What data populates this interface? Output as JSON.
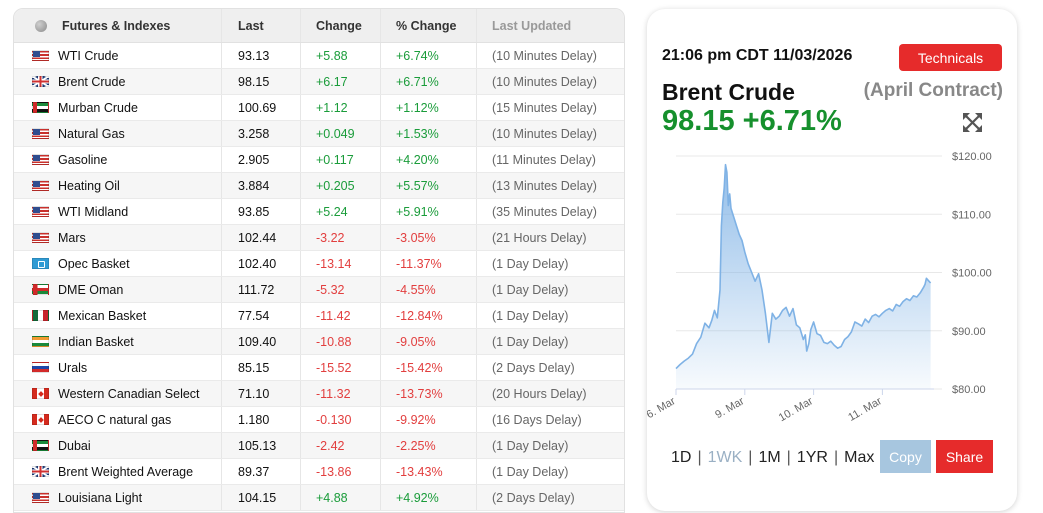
{
  "table": {
    "headers": {
      "name": "Futures & Indexes",
      "last": "Last",
      "change": "Change",
      "pct": "% Change",
      "updated": "Last Updated"
    },
    "rows": [
      {
        "flag": "us",
        "name": "WTI Crude",
        "last": "93.13",
        "change": "+5.88",
        "pct": "+6.74%",
        "updated": "(10 Minutes Delay)",
        "dir": "up"
      },
      {
        "flag": "uk",
        "name": "Brent Crude",
        "last": "98.15",
        "change": "+6.17",
        "pct": "+6.71%",
        "updated": "(10 Minutes Delay)",
        "dir": "up"
      },
      {
        "flag": "ae",
        "name": "Murban Crude",
        "last": "100.69",
        "change": "+1.12",
        "pct": "+1.12%",
        "updated": "(15 Minutes Delay)",
        "dir": "up"
      },
      {
        "flag": "us",
        "name": "Natural Gas",
        "last": "3.258",
        "change": "+0.049",
        "pct": "+1.53%",
        "updated": "(10 Minutes Delay)",
        "dir": "up"
      },
      {
        "flag": "us",
        "name": "Gasoline",
        "last": "2.905",
        "change": "+0.117",
        "pct": "+4.20%",
        "updated": "(11 Minutes Delay)",
        "dir": "up"
      },
      {
        "flag": "us",
        "name": "Heating Oil",
        "last": "3.884",
        "change": "+0.205",
        "pct": "+5.57%",
        "updated": "(13 Minutes Delay)",
        "dir": "up"
      },
      {
        "flag": "us",
        "name": "WTI Midland",
        "last": "93.85",
        "change": "+5.24",
        "pct": "+5.91%",
        "updated": "(35 Minutes Delay)",
        "dir": "up"
      },
      {
        "flag": "us",
        "name": "Mars",
        "last": "102.44",
        "change": "-3.22",
        "pct": "-3.05%",
        "updated": "(21 Hours Delay)",
        "dir": "down"
      },
      {
        "flag": "opec",
        "name": "Opec Basket",
        "last": "102.40",
        "change": "-13.14",
        "pct": "-11.37%",
        "updated": "(1 Day Delay)",
        "dir": "down"
      },
      {
        "flag": "om",
        "name": "DME Oman",
        "last": "111.72",
        "change": "-5.32",
        "pct": "-4.55%",
        "updated": "(1 Day Delay)",
        "dir": "down"
      },
      {
        "flag": "mx",
        "name": "Mexican Basket",
        "last": "77.54",
        "change": "-11.42",
        "pct": "-12.84%",
        "updated": "(1 Day Delay)",
        "dir": "down"
      },
      {
        "flag": "in",
        "name": "Indian Basket",
        "last": "109.40",
        "change": "-10.88",
        "pct": "-9.05%",
        "updated": "(1 Day Delay)",
        "dir": "down"
      },
      {
        "flag": "ru",
        "name": "Urals",
        "last": "85.15",
        "change": "-15.52",
        "pct": "-15.42%",
        "updated": "(2 Days Delay)",
        "dir": "down"
      },
      {
        "flag": "ca",
        "name": "Western Canadian Select",
        "last": "71.10",
        "change": "-11.32",
        "pct": "-13.73%",
        "updated": "(20 Hours Delay)",
        "dir": "down"
      },
      {
        "flag": "ca",
        "name": "AECO C natural gas",
        "last": "1.180",
        "change": "-0.130",
        "pct": "-9.92%",
        "updated": "(16 Days Delay)",
        "dir": "down"
      },
      {
        "flag": "ae",
        "name": "Dubai",
        "last": "105.13",
        "change": "-2.42",
        "pct": "-2.25%",
        "updated": "(1 Day Delay)",
        "dir": "down"
      },
      {
        "flag": "uk",
        "name": "Brent Weighted Average",
        "last": "89.37",
        "change": "-13.86",
        "pct": "-13.43%",
        "updated": "(1 Day Delay)",
        "dir": "down"
      },
      {
        "flag": "us",
        "name": "Louisiana Light",
        "last": "104.15",
        "change": "+4.88",
        "pct": "+4.92%",
        "updated": "(2 Days Delay)",
        "dir": "up"
      }
    ]
  },
  "detail": {
    "timestamp": "21:06 pm CDT 11/03/2026",
    "technicals_label": "Technicals",
    "instrument": "Brent Crude",
    "contract": "(April Contract)",
    "price": "98.15",
    "pct": "+6.71%",
    "ranges": [
      "1D",
      "1WK",
      "1M",
      "1YR",
      "Max"
    ],
    "active_range": "1WK",
    "copy_label": "Copy",
    "share_label": "Share"
  },
  "chart_data": {
    "type": "area",
    "y_ticks": [
      "$120.00",
      "$110.00",
      "$100.00",
      "$90.00",
      "$80.00"
    ],
    "ylim": [
      80,
      120
    ],
    "x_ticks": [
      {
        "label": "6. Mar",
        "x": 0
      },
      {
        "label": "9. Mar",
        "x": 1
      },
      {
        "label": "10. Mar",
        "x": 2
      },
      {
        "label": "11. Mar",
        "x": 3
      }
    ],
    "xlim": [
      0,
      3.75
    ],
    "series": [
      {
        "color": "#7fb2e5",
        "x": [
          0,
          0.06,
          0.12,
          0.18,
          0.24,
          0.3,
          0.36,
          0.42,
          0.48,
          0.52,
          0.56,
          0.6,
          0.64,
          0.66,
          0.68,
          0.7,
          0.72,
          0.74,
          0.76,
          0.78,
          0.8,
          0.84,
          0.88,
          0.92,
          0.96,
          1.0,
          1.05,
          1.1,
          1.15,
          1.2,
          1.25,
          1.3,
          1.35,
          1.4,
          1.45,
          1.5,
          1.55,
          1.6,
          1.65,
          1.7,
          1.75,
          1.8,
          1.85,
          1.88,
          1.9,
          1.93,
          1.96,
          2.0,
          2.05,
          2.1,
          2.15,
          2.2,
          2.25,
          2.3,
          2.35,
          2.4,
          2.45,
          2.5,
          2.55,
          2.6,
          2.65,
          2.7,
          2.75,
          2.8,
          2.85,
          2.9,
          2.95,
          3.0,
          3.05,
          3.1,
          3.15,
          3.2,
          3.25,
          3.3,
          3.35,
          3.4,
          3.45,
          3.5,
          3.55,
          3.6,
          3.62,
          3.64,
          3.67,
          3.7
        ],
        "y": [
          83.5,
          84.2,
          84.8,
          85.3,
          86.0,
          87.8,
          88.9,
          91.3,
          90.5,
          91.8,
          93.5,
          92.2,
          97.0,
          108.0,
          112.0,
          114.5,
          118.5,
          117.2,
          111.5,
          113.5,
          111.0,
          109.5,
          108.0,
          106.5,
          105.5,
          103.5,
          101.5,
          100.0,
          98.5,
          99.8,
          97.0,
          93.0,
          88.0,
          93.0,
          92.0,
          92.5,
          93.5,
          94.0,
          92.5,
          93.8,
          91.0,
          90.5,
          88.5,
          89.3,
          86.5,
          87.8,
          90.2,
          91.5,
          89.5,
          89.2,
          88.0,
          87.8,
          88.2,
          87.5,
          87.0,
          87.3,
          88.5,
          89.0,
          89.8,
          91.5,
          91.2,
          90.8,
          92.0,
          91.4,
          92.5,
          92.8,
          92.4,
          93.0,
          93.5,
          93.8,
          93.4,
          94.5,
          94.2,
          95.0,
          95.5,
          95.2,
          96.0,
          95.8,
          96.5,
          97.5,
          98.0,
          99.0,
          98.6,
          98.2
        ]
      }
    ]
  }
}
